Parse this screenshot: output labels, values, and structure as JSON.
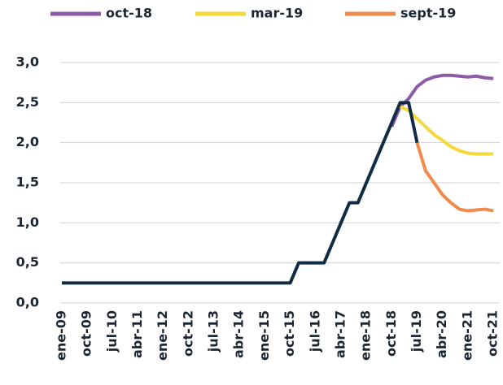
{
  "chart_data": {
    "type": "line",
    "categories": [
      "ene-09",
      null,
      null,
      "oct-09",
      null,
      null,
      "jul-10",
      null,
      null,
      "abr-11",
      null,
      null,
      "ene-12",
      null,
      null,
      "oct-12",
      null,
      null,
      "jul-13",
      null,
      null,
      "abr-14",
      null,
      null,
      "ene-15",
      null,
      null,
      "oct-15",
      null,
      null,
      "jul-16",
      null,
      null,
      "abr-17",
      null,
      null,
      "ene-18",
      null,
      null,
      "oct-18",
      null,
      null,
      "jul-19",
      null,
      null,
      "abr-20",
      null,
      null,
      "ene-21",
      null,
      null,
      "oct-21"
    ],
    "series": [
      {
        "name": "oct-18",
        "color": "#8e59a8",
        "values": [
          null,
          null,
          null,
          null,
          null,
          null,
          null,
          null,
          null,
          null,
          null,
          null,
          null,
          null,
          null,
          null,
          null,
          null,
          null,
          null,
          null,
          null,
          null,
          null,
          null,
          null,
          null,
          null,
          null,
          null,
          null,
          null,
          null,
          null,
          null,
          null,
          null,
          null,
          null,
          2.2,
          2.45,
          2.55,
          2.7,
          2.78,
          2.82,
          2.84,
          2.84,
          2.83,
          2.82,
          2.83,
          2.81,
          2.8
        ]
      },
      {
        "name": "mar-19",
        "color": "#f7d83a",
        "values": [
          null,
          null,
          null,
          null,
          null,
          null,
          null,
          null,
          null,
          null,
          null,
          null,
          null,
          null,
          null,
          null,
          null,
          null,
          null,
          null,
          null,
          null,
          null,
          null,
          null,
          null,
          null,
          null,
          null,
          null,
          null,
          null,
          null,
          null,
          null,
          null,
          null,
          null,
          null,
          null,
          2.45,
          2.4,
          2.3,
          2.2,
          2.1,
          2.03,
          1.95,
          1.9,
          1.87,
          1.86,
          1.86,
          1.86
        ]
      },
      {
        "name": "sept-19",
        "color": "#f08a4b",
        "values": [
          null,
          null,
          null,
          null,
          null,
          null,
          null,
          null,
          null,
          null,
          null,
          null,
          null,
          null,
          null,
          null,
          null,
          null,
          null,
          null,
          null,
          null,
          null,
          null,
          null,
          null,
          null,
          null,
          null,
          null,
          null,
          null,
          null,
          null,
          null,
          null,
          null,
          null,
          null,
          null,
          null,
          null,
          2.0,
          1.65,
          1.5,
          1.35,
          1.25,
          1.17,
          1.15,
          1.16,
          1.17,
          1.15
        ]
      },
      {
        "color": "#0f2c44",
        "values": [
          0.25,
          0.25,
          0.25,
          0.25,
          0.25,
          0.25,
          0.25,
          0.25,
          0.25,
          0.25,
          0.25,
          0.25,
          0.25,
          0.25,
          0.25,
          0.25,
          0.25,
          0.25,
          0.25,
          0.25,
          0.25,
          0.25,
          0.25,
          0.25,
          0.25,
          0.25,
          0.25,
          0.25,
          0.5,
          0.5,
          0.5,
          0.5,
          0.75,
          1.0,
          1.25,
          1.25,
          1.5,
          1.75,
          2.0,
          2.25,
          2.5,
          2.5,
          2.0,
          null,
          null,
          null,
          null,
          null,
          null,
          null,
          null,
          null
        ]
      }
    ],
    "ylim": [
      0,
      3
    ],
    "yticks": [
      {
        "value": 0,
        "label": "0,0"
      },
      {
        "value": 0.5,
        "label": "0,5"
      },
      {
        "value": 1,
        "label": "1,0"
      },
      {
        "value": 1.5,
        "label": "1,5"
      },
      {
        "value": 2,
        "label": "2,0"
      },
      {
        "value": 2.5,
        "label": "2,5"
      },
      {
        "value": 3,
        "label": "3,0"
      }
    ],
    "grid": true,
    "legend": "top"
  }
}
